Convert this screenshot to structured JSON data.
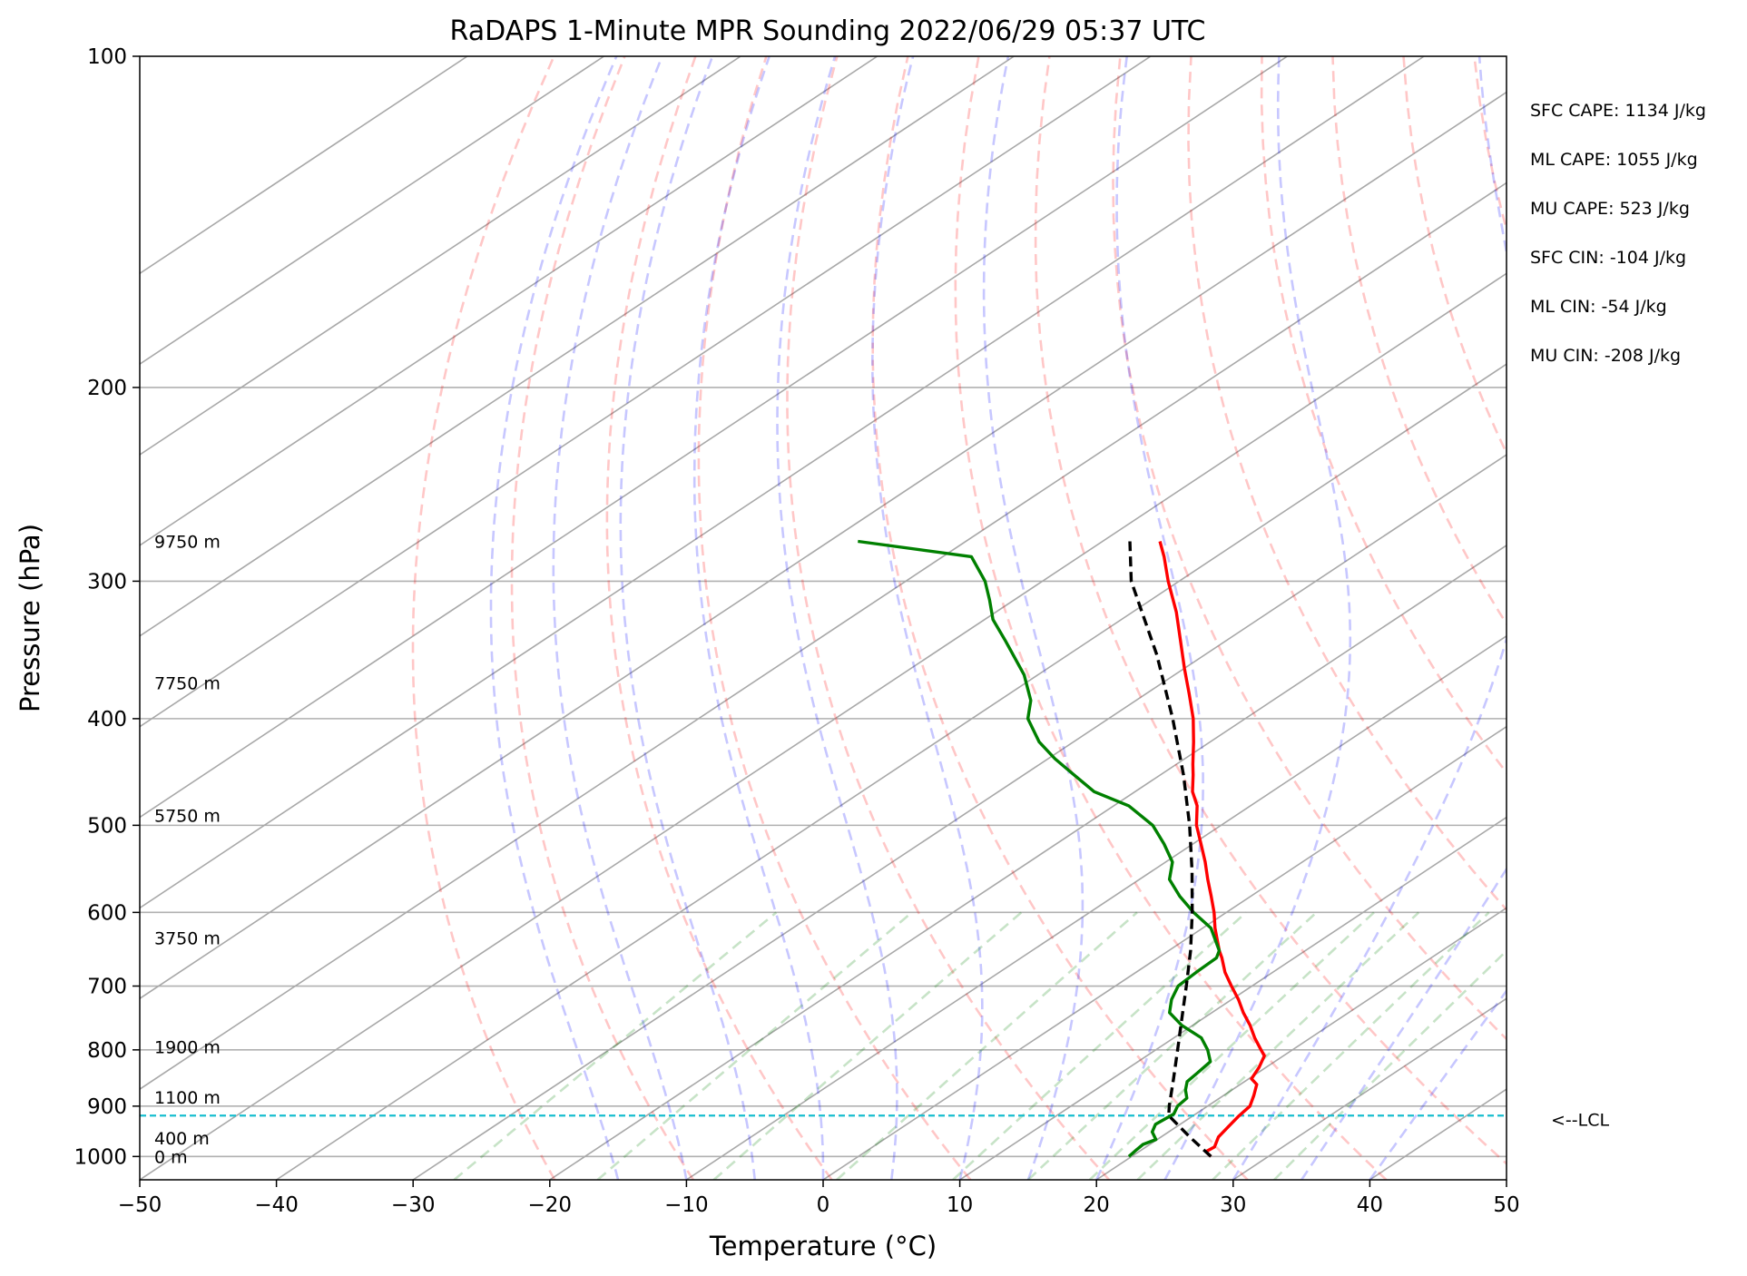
{
  "chart_data": {
    "type": "line",
    "title": "RaDAPS 1-Minute MPR Sounding 2022/06/29 05:37 UTC",
    "xlabel": "Temperature (°C)",
    "ylabel": "Pressure (hPa)",
    "xlim": [
      -50,
      50
    ],
    "ylim": [
      1050,
      100
    ],
    "y_scale": "log",
    "skew": "skew-T (isotherms slanted)",
    "x_ticks": [
      "−50",
      "−40",
      "−30",
      "−20",
      "−10",
      "0",
      "10",
      "20",
      "30",
      "40",
      "50"
    ],
    "x_tick_values": [
      -50,
      -40,
      -30,
      -20,
      -10,
      0,
      10,
      20,
      30,
      40,
      50
    ],
    "y_ticks": [
      "100",
      "200",
      "300",
      "400",
      "500",
      "600",
      "700",
      "800",
      "900",
      "1000"
    ],
    "y_tick_values": [
      100,
      200,
      300,
      400,
      500,
      600,
      700,
      800,
      900,
      1000
    ],
    "isotherms_c": [
      -150,
      -140,
      -130,
      -120,
      -110,
      -100,
      -90,
      -80,
      -70,
      -60,
      -50,
      -40,
      -30,
      -20,
      -10,
      0,
      10,
      20,
      30,
      40,
      50
    ],
    "dry_adiabats_k": [
      250,
      260,
      270,
      280,
      290,
      300,
      310,
      320,
      330,
      340,
      350,
      360,
      370,
      380,
      390,
      400,
      410,
      420,
      430,
      440,
      450
    ],
    "moist_adiabats_start_c": [
      -15,
      -10,
      -5,
      0,
      5,
      10,
      15,
      20,
      25,
      30,
      35,
      40
    ],
    "mixing_ratio_start_t_c": [
      -27,
      -16.5,
      -8,
      1,
      9.5,
      15,
      19.5,
      23,
      28.5,
      33
    ],
    "height_labels": [
      {
        "label": "9750 m",
        "p": 276
      },
      {
        "label": "7750 m",
        "p": 371
      },
      {
        "label": "5750 m",
        "p": 490
      },
      {
        "label": "3750 m",
        "p": 633
      },
      {
        "label": "1900 m",
        "p": 795
      },
      {
        "label": "1100 m",
        "p": 883
      },
      {
        "label": "400 m",
        "p": 962
      },
      {
        "label": "0 m",
        "p": 1000
      }
    ],
    "lcl": {
      "label": "<--LCL",
      "p": 918
    },
    "stats": [
      "SFC CAPE: 1134 J/kg",
      "ML CAPE: 1055 J/kg",
      "MU CAPE: 523 J/kg",
      "SFC CIN: -104 J/kg",
      "ML CIN: -54 J/kg",
      "MU CIN: -208 J/kg"
    ],
    "series": [
      {
        "key": "temperature",
        "color": "#ff0000",
        "points": [
          [
            1000,
            25.8
          ],
          [
            990,
            24.9
          ],
          [
            980,
            25.0
          ],
          [
            960,
            24.2
          ],
          [
            940,
            23.8
          ],
          [
            920,
            23.4
          ],
          [
            900,
            23.1
          ],
          [
            880,
            22.2
          ],
          [
            860,
            21.2
          ],
          [
            850,
            20.2
          ],
          [
            830,
            19.5
          ],
          [
            810,
            18.6
          ],
          [
            800,
            17.7
          ],
          [
            780,
            15.9
          ],
          [
            760,
            14.2
          ],
          [
            740,
            12.3
          ],
          [
            720,
            10.5
          ],
          [
            700,
            8.5
          ],
          [
            680,
            6.5
          ],
          [
            660,
            4.7
          ],
          [
            650,
            3.7
          ],
          [
            620,
            0.9
          ],
          [
            600,
            -0.9
          ],
          [
            580,
            -2.9
          ],
          [
            560,
            -5.0
          ],
          [
            540,
            -7.1
          ],
          [
            520,
            -9.4
          ],
          [
            500,
            -11.8
          ],
          [
            480,
            -13.9
          ],
          [
            466,
            -15.8
          ],
          [
            450,
            -17.6
          ],
          [
            440,
            -18.8
          ],
          [
            420,
            -21.2
          ],
          [
            400,
            -23.8
          ],
          [
            380,
            -26.8
          ],
          [
            360,
            -30.0
          ],
          [
            340,
            -33.3
          ],
          [
            320,
            -36.8
          ],
          [
            300,
            -40.8
          ],
          [
            285,
            -43.8
          ],
          [
            276,
            -45.8
          ]
        ]
      },
      {
        "key": "dewpoint",
        "color": "#008000",
        "points": [
          [
            1000,
            19.8
          ],
          [
            985,
            19.6
          ],
          [
            975,
            19.5
          ],
          [
            965,
            19.9
          ],
          [
            950,
            18.8
          ],
          [
            935,
            18.2
          ],
          [
            915,
            18.4
          ],
          [
            900,
            17.8
          ],
          [
            885,
            17.6
          ],
          [
            870,
            16.6
          ],
          [
            855,
            15.8
          ],
          [
            840,
            15.6
          ],
          [
            820,
            15.3
          ],
          [
            800,
            13.8
          ],
          [
            780,
            12.0
          ],
          [
            760,
            9.2
          ],
          [
            740,
            6.9
          ],
          [
            720,
            5.6
          ],
          [
            700,
            4.6
          ],
          [
            680,
            4.4
          ],
          [
            660,
            4.3
          ],
          [
            650,
            3.7
          ],
          [
            620,
            0.6
          ],
          [
            600,
            -2.4
          ],
          [
            580,
            -5.2
          ],
          [
            560,
            -7.8
          ],
          [
            540,
            -9.5
          ],
          [
            520,
            -12.1
          ],
          [
            500,
            -15.0
          ],
          [
            480,
            -18.9
          ],
          [
            466,
            -23.0
          ],
          [
            450,
            -26.3
          ],
          [
            435,
            -29.5
          ],
          [
            420,
            -32.5
          ],
          [
            400,
            -35.9
          ],
          [
            385,
            -37.7
          ],
          [
            365,
            -41.0
          ],
          [
            340,
            -46.1
          ],
          [
            325,
            -49.4
          ],
          [
            312,
            -51.8
          ],
          [
            300,
            -54.2
          ],
          [
            285,
            -57.9
          ],
          [
            276,
            -67.9
          ]
        ]
      },
      {
        "key": "parcel",
        "color": "#000000",
        "dashed": true,
        "points": [
          [
            1000,
            25.8
          ],
          [
            960,
            22.1
          ],
          [
            918,
            18.2
          ],
          [
            900,
            17.2
          ],
          [
            850,
            14.5
          ],
          [
            800,
            11.6
          ],
          [
            750,
            8.5
          ],
          [
            700,
            5.2
          ],
          [
            650,
            1.6
          ],
          [
            600,
            -2.5
          ],
          [
            550,
            -7.1
          ],
          [
            500,
            -12.3
          ],
          [
            450,
            -18.3
          ],
          [
            400,
            -25.3
          ],
          [
            350,
            -33.5
          ],
          [
            300,
            -43.5
          ],
          [
            276,
            -48.0
          ]
        ]
      }
    ]
  }
}
